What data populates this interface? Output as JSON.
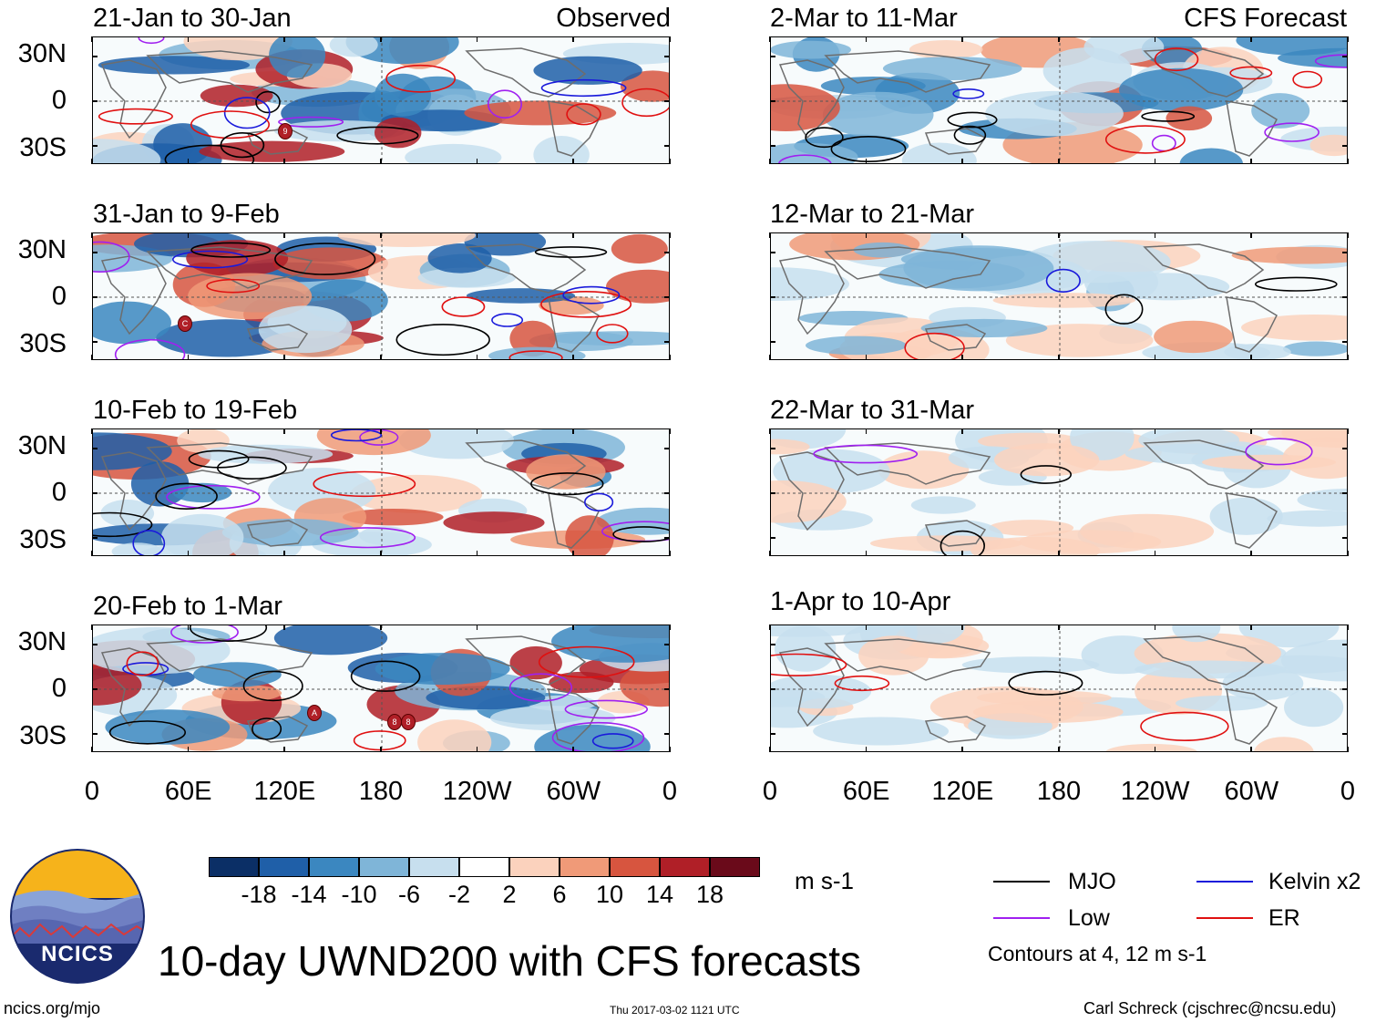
{
  "observed_label": "Observed",
  "forecast_label": "CFS Forecast",
  "panels_left": [
    {
      "title": "21-Jan to 30-Jan"
    },
    {
      "title": "31-Jan to 9-Feb"
    },
    {
      "title": "10-Feb to 19-Feb"
    },
    {
      "title": "20-Feb to 1-Mar"
    }
  ],
  "panels_right": [
    {
      "title": "2-Mar to 11-Mar"
    },
    {
      "title": "12-Mar to 21-Mar"
    },
    {
      "title": "22-Mar to 31-Mar"
    },
    {
      "title": "1-Apr to 10-Apr"
    }
  ],
  "lat_labels": [
    "30N",
    "0",
    "30S"
  ],
  "lon_labels": [
    "0",
    "60E",
    "120E",
    "180",
    "120W",
    "60W",
    "0"
  ],
  "colorbar": {
    "colors": [
      "#0b2f66",
      "#1f5fa8",
      "#3b87c0",
      "#7fb5d8",
      "#c7dfee",
      "#ffffff",
      "#fbd2bd",
      "#f09a78",
      "#d7553f",
      "#b01f27",
      "#6a0a1a"
    ],
    "labels": [
      "-18",
      "-14",
      "-10",
      "-6",
      "-2",
      "2",
      "6",
      "10",
      "14",
      "18"
    ],
    "units": "m s-1"
  },
  "legend": {
    "items": [
      {
        "label": "MJO",
        "color": "#000000"
      },
      {
        "label": "Kelvin x2",
        "color": "#1a1adb"
      },
      {
        "label": "Low",
        "color": "#a020f0"
      },
      {
        "label": "ER",
        "color": "#e01010"
      }
    ],
    "note": "Contours at 4, 12 m s-1"
  },
  "logo_text": "NCICS",
  "main_title": "10-day UWND200 with CFS forecasts",
  "footer": {
    "left": "ncics.org/mjo",
    "center": "Thu 2017-03-02 1121 UTC",
    "right": "Carl Schreck (cjschrec@ncsu.edu)"
  },
  "storm_markers": [
    {
      "panel": 0,
      "label": "9"
    },
    {
      "panel": 1,
      "label": "C"
    },
    {
      "panel": 3,
      "label": "A"
    },
    {
      "panel": 3,
      "label": "8"
    },
    {
      "panel": 3,
      "label": "8"
    }
  ]
}
